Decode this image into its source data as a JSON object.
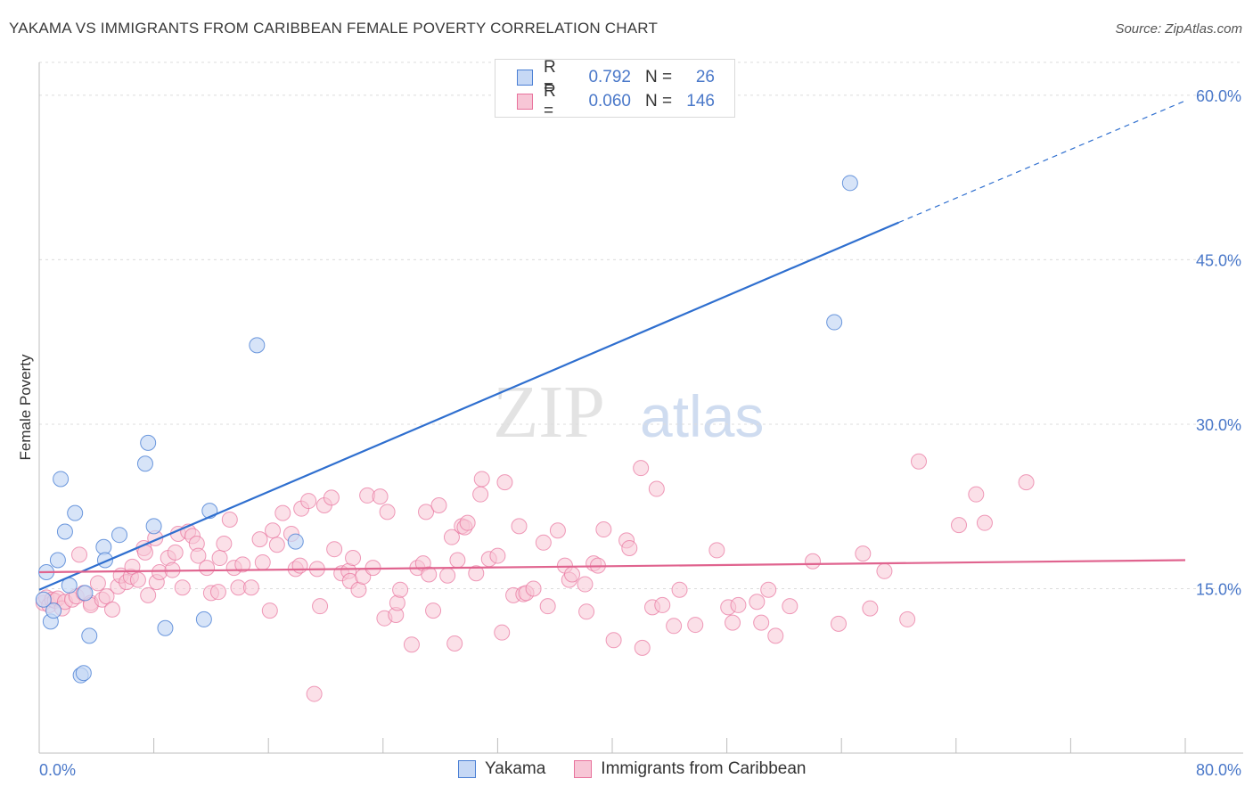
{
  "header": {
    "title": "YAKAMA VS IMMIGRANTS FROM CARIBBEAN FEMALE POVERTY CORRELATION CHART",
    "source": "Source: ZipAtlas.com"
  },
  "legend": {
    "rows": [
      {
        "r_label": "R =",
        "r_value": "0.792",
        "n_label": "N =",
        "n_value": "26"
      },
      {
        "r_label": "R =",
        "r_value": "0.060",
        "n_label": "N =",
        "n_value": "146"
      }
    ]
  },
  "watermark": {
    "zip": "ZIP",
    "atlas": "atlas"
  },
  "colors": {
    "yakama": "#4a7fd4",
    "yakama_fill": "#c6d8f5",
    "caribbean": "#e8729c",
    "caribbean_fill": "#f7c6d6",
    "tick_text": "#4a78c9"
  },
  "chart_data": {
    "type": "scatter",
    "title": "YAKAMA VS IMMIGRANTS FROM CARIBBEAN FEMALE POVERTY CORRELATION CHART",
    "xlabel": "",
    "ylabel": "Female Poverty",
    "xlim": [
      0,
      80
    ],
    "ylim": [
      0,
      63
    ],
    "x_tick_labels": [
      "0.0%",
      "80.0%"
    ],
    "y_ticks": [
      15,
      30,
      45,
      60
    ],
    "y_tick_labels": [
      "15.0%",
      "30.0%",
      "45.0%",
      "60.0%"
    ],
    "grid": true,
    "legend_position": "top-center",
    "series": [
      {
        "name": "Yakama",
        "color": "#4a7fd4",
        "points": [
          [
            0.5,
            16.5
          ],
          [
            0.8,
            12.0
          ],
          [
            1.0,
            13.0
          ],
          [
            1.3,
            17.6
          ],
          [
            1.5,
            25.0
          ],
          [
            1.8,
            20.2
          ],
          [
            2.1,
            15.3
          ],
          [
            2.5,
            21.9
          ],
          [
            2.9,
            7.1
          ],
          [
            3.1,
            7.3
          ],
          [
            3.2,
            14.6
          ],
          [
            3.5,
            10.7
          ],
          [
            4.5,
            18.8
          ],
          [
            4.6,
            17.6
          ],
          [
            5.6,
            19.9
          ],
          [
            7.4,
            26.4
          ],
          [
            7.6,
            28.3
          ],
          [
            8.0,
            20.7
          ],
          [
            8.8,
            11.4
          ],
          [
            11.5,
            12.2
          ],
          [
            11.9,
            22.1
          ],
          [
            15.2,
            37.2
          ],
          [
            17.9,
            19.3
          ],
          [
            56.6,
            52.0
          ],
          [
            55.5,
            39.3
          ],
          [
            0.3,
            14.0
          ]
        ],
        "trend": {
          "x0": 0,
          "y0": 14.9,
          "x1": 60,
          "y1": 48.4,
          "dashed_to_x": 80,
          "dashed_to_y": 59.5
        }
      },
      {
        "name": "Immigrants from Caribbean",
        "color": "#e8729c",
        "points": [
          [
            0.3,
            13.7
          ],
          [
            0.5,
            14.2
          ],
          [
            0.7,
            13.5
          ],
          [
            0.9,
            14.0
          ],
          [
            1.1,
            13.9
          ],
          [
            1.3,
            14.1
          ],
          [
            1.6,
            13.2
          ],
          [
            1.8,
            13.8
          ],
          [
            2.3,
            14.0
          ],
          [
            2.6,
            14.3
          ],
          [
            2.8,
            18.1
          ],
          [
            3.1,
            14.6
          ],
          [
            3.6,
            13.7
          ],
          [
            3.6,
            13.5
          ],
          [
            4.1,
            15.5
          ],
          [
            4.4,
            14.0
          ],
          [
            4.7,
            14.3
          ],
          [
            5.1,
            13.1
          ],
          [
            5.5,
            15.2
          ],
          [
            5.7,
            16.2
          ],
          [
            6.1,
            15.6
          ],
          [
            6.4,
            16.1
          ],
          [
            6.5,
            17.0
          ],
          [
            6.9,
            15.8
          ],
          [
            7.3,
            18.7
          ],
          [
            7.4,
            18.3
          ],
          [
            7.6,
            14.4
          ],
          [
            8.1,
            19.6
          ],
          [
            8.2,
            15.6
          ],
          [
            8.4,
            16.5
          ],
          [
            9.0,
            17.8
          ],
          [
            9.3,
            16.7
          ],
          [
            9.5,
            18.3
          ],
          [
            9.7,
            20.0
          ],
          [
            10.0,
            15.1
          ],
          [
            10.4,
            20.2
          ],
          [
            10.7,
            19.8
          ],
          [
            11.0,
            19.1
          ],
          [
            11.1,
            18.0
          ],
          [
            11.7,
            16.9
          ],
          [
            12.0,
            14.6
          ],
          [
            12.5,
            14.7
          ],
          [
            12.6,
            17.8
          ],
          [
            12.9,
            19.1
          ],
          [
            13.3,
            21.3
          ],
          [
            13.6,
            16.9
          ],
          [
            13.9,
            15.1
          ],
          [
            14.2,
            17.2
          ],
          [
            14.8,
            15.1
          ],
          [
            15.4,
            19.5
          ],
          [
            15.6,
            17.4
          ],
          [
            16.1,
            13.0
          ],
          [
            16.3,
            20.3
          ],
          [
            16.6,
            19.0
          ],
          [
            17.0,
            21.9
          ],
          [
            17.6,
            20.0
          ],
          [
            17.9,
            16.8
          ],
          [
            18.2,
            17.1
          ],
          [
            18.3,
            22.3
          ],
          [
            18.8,
            23.0
          ],
          [
            19.2,
            5.4
          ],
          [
            19.4,
            16.8
          ],
          [
            19.6,
            13.4
          ],
          [
            19.9,
            22.6
          ],
          [
            20.4,
            23.3
          ],
          [
            20.6,
            18.6
          ],
          [
            21.1,
            16.4
          ],
          [
            21.6,
            16.6
          ],
          [
            21.7,
            15.7
          ],
          [
            21.9,
            17.8
          ],
          [
            22.3,
            14.9
          ],
          [
            22.6,
            16.1
          ],
          [
            22.9,
            23.5
          ],
          [
            23.3,
            16.9
          ],
          [
            23.8,
            23.4
          ],
          [
            24.1,
            12.3
          ],
          [
            24.3,
            22.0
          ],
          [
            24.9,
            12.6
          ],
          [
            25.0,
            13.7
          ],
          [
            25.2,
            14.9
          ],
          [
            26.0,
            9.9
          ],
          [
            26.4,
            16.9
          ],
          [
            26.8,
            17.3
          ],
          [
            27.0,
            22.0
          ],
          [
            27.2,
            16.3
          ],
          [
            27.5,
            13.0
          ],
          [
            27.9,
            22.6
          ],
          [
            28.5,
            16.2
          ],
          [
            28.8,
            19.7
          ],
          [
            29.0,
            10.0
          ],
          [
            29.2,
            17.6
          ],
          [
            29.5,
            20.7
          ],
          [
            29.7,
            20.6
          ],
          [
            29.9,
            21.0
          ],
          [
            30.5,
            16.4
          ],
          [
            30.8,
            23.6
          ],
          [
            30.9,
            25.0
          ],
          [
            31.4,
            17.7
          ],
          [
            32.0,
            18.0
          ],
          [
            32.3,
            11.0
          ],
          [
            32.5,
            24.7
          ],
          [
            33.1,
            14.4
          ],
          [
            33.5,
            20.7
          ],
          [
            33.8,
            14.5
          ],
          [
            34.0,
            14.6
          ],
          [
            34.5,
            15.0
          ],
          [
            35.2,
            19.2
          ],
          [
            35.5,
            13.4
          ],
          [
            36.2,
            20.3
          ],
          [
            36.7,
            17.1
          ],
          [
            37.0,
            15.8
          ],
          [
            37.2,
            16.3
          ],
          [
            38.1,
            15.4
          ],
          [
            38.2,
            12.9
          ],
          [
            38.7,
            17.3
          ],
          [
            39.0,
            17.1
          ],
          [
            39.4,
            20.4
          ],
          [
            40.1,
            10.3
          ],
          [
            41.0,
            19.4
          ],
          [
            41.2,
            18.7
          ],
          [
            42.0,
            26.0
          ],
          [
            42.1,
            9.6
          ],
          [
            42.8,
            13.3
          ],
          [
            43.1,
            24.1
          ],
          [
            43.5,
            13.5
          ],
          [
            44.3,
            11.6
          ],
          [
            44.7,
            14.9
          ],
          [
            45.8,
            11.7
          ],
          [
            47.3,
            18.5
          ],
          [
            48.1,
            13.3
          ],
          [
            48.4,
            11.9
          ],
          [
            48.8,
            13.5
          ],
          [
            50.1,
            13.8
          ],
          [
            50.4,
            11.9
          ],
          [
            50.9,
            14.9
          ],
          [
            51.4,
            10.7
          ],
          [
            52.4,
            13.4
          ],
          [
            54.0,
            17.5
          ],
          [
            55.8,
            11.8
          ],
          [
            57.5,
            18.2
          ],
          [
            58.0,
            13.2
          ],
          [
            59.0,
            16.6
          ],
          [
            60.6,
            12.2
          ],
          [
            61.4,
            26.6
          ],
          [
            64.2,
            20.8
          ],
          [
            65.4,
            23.6
          ],
          [
            66.0,
            21.0
          ],
          [
            68.9,
            24.7
          ]
        ],
        "trend": {
          "x0": 0,
          "y0": 16.5,
          "x1": 80,
          "y1": 17.6
        }
      }
    ]
  },
  "bottom_legend": {
    "items": [
      "Yakama",
      "Immigrants from Caribbean"
    ]
  }
}
